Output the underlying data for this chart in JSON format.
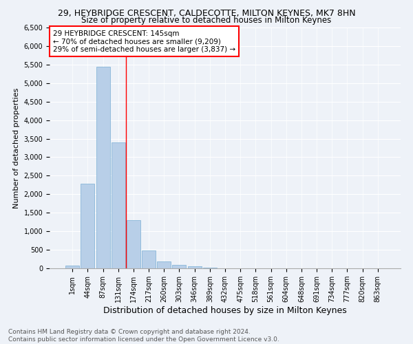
{
  "title": "29, HEYBRIDGE CRESCENT, CALDECOTTE, MILTON KEYNES, MK7 8HN",
  "subtitle": "Size of property relative to detached houses in Milton Keynes",
  "xlabel": "Distribution of detached houses by size in Milton Keynes",
  "ylabel": "Number of detached properties",
  "bin_labels": [
    "1sqm",
    "44sqm",
    "87sqm",
    "131sqm",
    "174sqm",
    "217sqm",
    "260sqm",
    "303sqm",
    "346sqm",
    "389sqm",
    "432sqm",
    "475sqm",
    "518sqm",
    "561sqm",
    "604sqm",
    "648sqm",
    "691sqm",
    "734sqm",
    "777sqm",
    "820sqm",
    "863sqm"
  ],
  "bar_values": [
    75,
    2280,
    5440,
    3400,
    1300,
    480,
    195,
    100,
    55,
    25,
    5,
    5,
    0,
    0,
    0,
    0,
    0,
    0,
    0,
    0,
    0
  ],
  "bar_color": "#b8cfe8",
  "bar_edge_color": "#7aaed4",
  "vline_x": 3.5,
  "vline_color": "red",
  "annotation_text": "29 HEYBRIDGE CRESCENT: 145sqm\n← 70% of detached houses are smaller (9,209)\n29% of semi-detached houses are larger (3,837) →",
  "annotation_box_color": "white",
  "annotation_box_edge": "red",
  "ylim": [
    0,
    6500
  ],
  "yticks": [
    0,
    500,
    1000,
    1500,
    2000,
    2500,
    3000,
    3500,
    4000,
    4500,
    5000,
    5500,
    6000,
    6500
  ],
  "footer_line1": "Contains HM Land Registry data © Crown copyright and database right 2024.",
  "footer_line2": "Contains public sector information licensed under the Open Government Licence v3.0.",
  "bg_color": "#eef2f8",
  "grid_color": "white",
  "title_fontsize": 9,
  "subtitle_fontsize": 8.5,
  "xlabel_fontsize": 9,
  "ylabel_fontsize": 8,
  "tick_fontsize": 7,
  "annotation_fontsize": 7.5,
  "footer_fontsize": 6.5
}
